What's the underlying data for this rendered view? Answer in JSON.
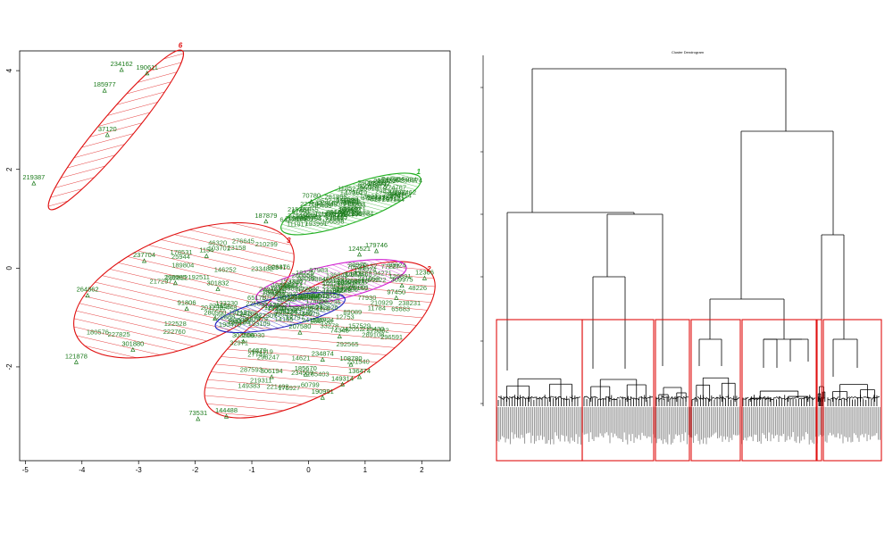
{
  "chart_data": [
    {
      "type": "scatter",
      "title": "",
      "xlabel": "",
      "ylabel": "",
      "xlim": [
        -5.1,
        2.5
      ],
      "ylim": [
        -3.9,
        4.4
      ],
      "x_ticks": [
        "-5",
        "-4",
        "-3",
        "-2",
        "-1",
        "0",
        "1",
        "2"
      ],
      "y_ticks": [
        "-2",
        "0",
        "2",
        "4"
      ],
      "clusters": [
        {
          "id": "1",
          "color": "#22b022",
          "center": [
            0.75,
            1.3
          ],
          "rx": 1.4,
          "ry": 0.35,
          "angle": 20
        },
        {
          "id": "2",
          "color": "#e01010",
          "center": [
            0.2,
            -1.45
          ],
          "rx": 2.45,
          "ry": 0.95,
          "angle": 30
        },
        {
          "id": "3",
          "color": "#e01010",
          "center": [
            -2.2,
            -0.45
          ],
          "rx": 2.2,
          "ry": 1.05,
          "angle": 22
        },
        {
          "id": "4",
          "color": "#d020d0",
          "center": [
            0.4,
            -0.3
          ],
          "rx": 1.45,
          "ry": 0.33,
          "angle": 12
        },
        {
          "id": "5",
          "color": "#2020c0",
          "center": [
            -0.5,
            -0.9
          ],
          "rx": 1.25,
          "ry": 0.28,
          "angle": 12
        },
        {
          "id": "6",
          "color": "#e01010",
          "center": [
            -3.4,
            2.8
          ],
          "rx": 1.95,
          "ry": 0.3,
          "angle": 50
        }
      ],
      "cluster_labels": [
        "1",
        "2",
        "3",
        "6"
      ],
      "points": [
        {
          "label": "234162",
          "x": -3.3,
          "y": 4.02
        },
        {
          "label": "190611",
          "x": -2.85,
          "y": 3.95
        },
        {
          "label": "185977",
          "x": -3.6,
          "y": 3.6
        },
        {
          "label": "37120",
          "x": -3.55,
          "y": 2.7
        },
        {
          "label": "219387",
          "x": -4.85,
          "y": 1.72
        },
        {
          "label": "237704",
          "x": -2.9,
          "y": 0.15
        },
        {
          "label": "187879",
          "x": -0.75,
          "y": 0.95
        },
        {
          "label": "70780",
          "x": 0.05,
          "y": 1.35
        },
        {
          "label": "232452",
          "x": 1.35,
          "y": 1.65
        },
        {
          "label": "1154",
          "x": -1.8,
          "y": 0.25
        },
        {
          "label": "218085",
          "x": -2.35,
          "y": -0.3
        },
        {
          "label": "264862",
          "x": -3.9,
          "y": -0.55
        },
        {
          "label": "91806",
          "x": -2.15,
          "y": -0.82
        },
        {
          "label": "301880",
          "x": -3.1,
          "y": -1.65
        },
        {
          "label": "121878",
          "x": -4.1,
          "y": -1.9
        },
        {
          "label": "301832",
          "x": -1.6,
          "y": -0.42
        },
        {
          "label": "280560",
          "x": -1.65,
          "y": -1.02
        },
        {
          "label": "303506",
          "x": -1.15,
          "y": -1.48
        },
        {
          "label": "207580",
          "x": -0.15,
          "y": -1.3
        },
        {
          "label": "74348",
          "x": 0.55,
          "y": -1.38
        },
        {
          "label": "12366",
          "x": 2.05,
          "y": -0.2
        },
        {
          "label": "179746",
          "x": 1.2,
          "y": 0.35
        },
        {
          "label": "124521",
          "x": 0.9,
          "y": 0.28
        },
        {
          "label": "234874",
          "x": 0.25,
          "y": -1.85
        },
        {
          "label": "306194",
          "x": -0.65,
          "y": -2.2
        },
        {
          "label": "185670",
          "x": -0.05,
          "y": -2.15
        },
        {
          "label": "149314",
          "x": 0.6,
          "y": -2.35
        },
        {
          "label": "136474",
          "x": 0.9,
          "y": -2.2
        },
        {
          "label": "190991",
          "x": 0.25,
          "y": -2.62
        },
        {
          "label": "144488",
          "x": -1.45,
          "y": -3.0
        },
        {
          "label": "73531",
          "x": -1.95,
          "y": -3.05
        },
        {
          "label": "108780",
          "x": 0.75,
          "y": -1.95
        },
        {
          "label": "97450",
          "x": 1.55,
          "y": -0.6
        },
        {
          "label": "309975",
          "x": 1.65,
          "y": -0.35
        }
      ]
    },
    {
      "type": "dendrogram",
      "title": "Cluster Dendrogram",
      "xlabel": "",
      "ylabel": "",
      "cut_boxes": 9
    }
  ]
}
